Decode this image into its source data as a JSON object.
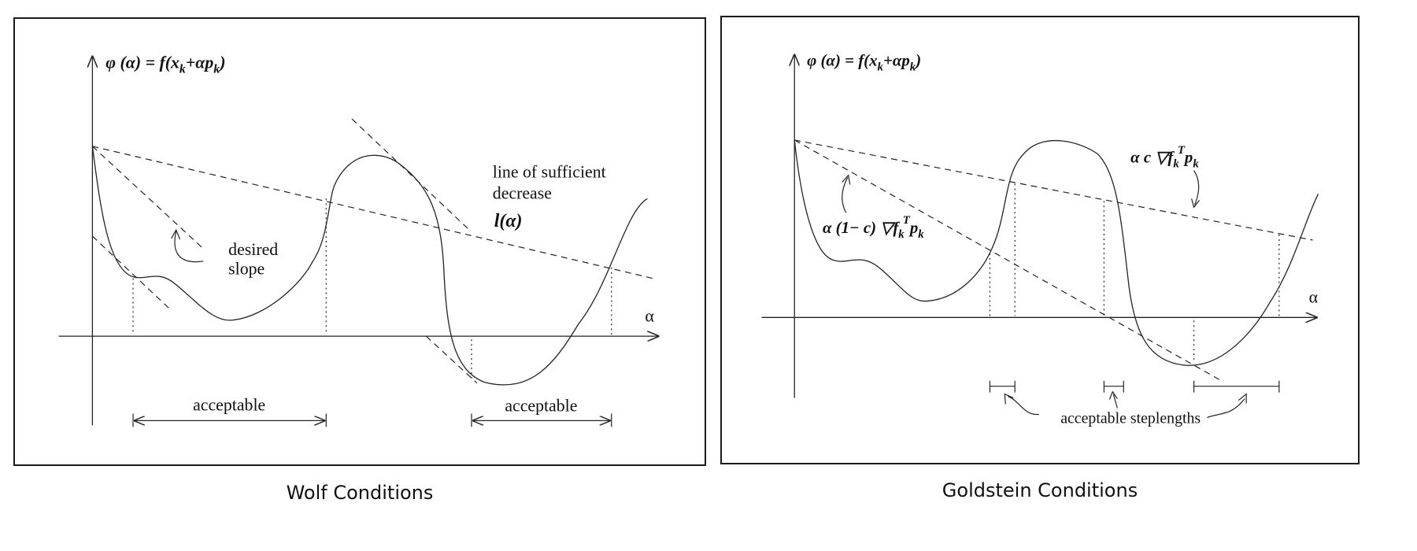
{
  "wolf": {
    "caption": "Wolf Conditions",
    "phi_label": "φ (α) = f(x",
    "phi_sub1": "k",
    "phi_mid": "+αp",
    "phi_sub2": "k",
    "phi_end": ")",
    "alpha_axis": "α",
    "sufficient_line1": "line of sufficient",
    "sufficient_line2": "decrease",
    "l_alpha": "l(α)",
    "desired_line1": "desired",
    "desired_line2": "slope",
    "acceptable_1": "acceptable",
    "acceptable_2": "acceptable"
  },
  "goldstein": {
    "caption": "Goldstein Conditions",
    "phi_label": "φ (α) = f(x",
    "phi_sub1": "k",
    "phi_mid": "+αp",
    "phi_sub2": "k",
    "phi_end": ")",
    "alpha_axis": "α",
    "upper_pre": "α c ▽f",
    "upper_sub": "k",
    "upper_sup": "T",
    "upper_p": "p",
    "upper_psub": "k",
    "lower_pre": "α (1− c) ▽f",
    "lower_sub": "k",
    "lower_sup": "T",
    "lower_p": "p",
    "lower_psub": "k",
    "acceptable_steplengths": "acceptable steplengths"
  }
}
